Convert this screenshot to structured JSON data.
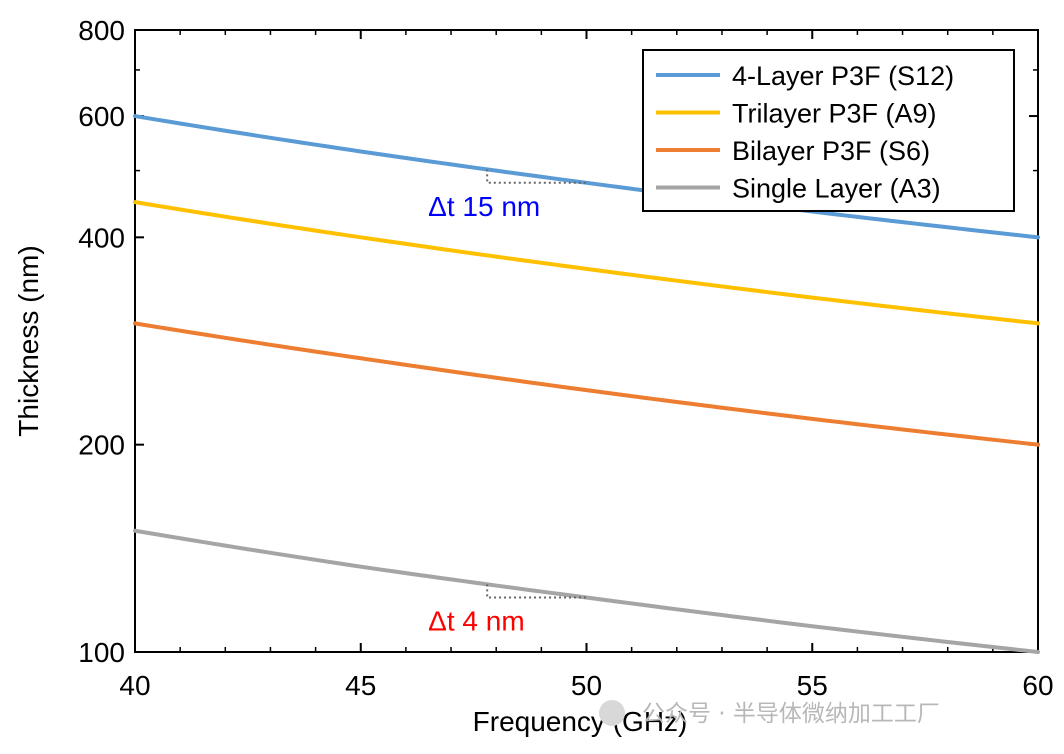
{
  "chart_data": {
    "type": "line",
    "title": "",
    "xlabel": "Frequency (GHz)",
    "ylabel": "Thickness (nm)",
    "x_scale": "linear",
    "y_scale": "log",
    "xlim": [
      40,
      60
    ],
    "ylim": [
      100,
      800
    ],
    "xticks": [
      40,
      45,
      50,
      55,
      60
    ],
    "yticks": [
      100,
      200,
      400,
      600,
      800
    ],
    "x": [
      40,
      45,
      50,
      55,
      60
    ],
    "series": [
      {
        "name": "4-Layer P3F (S12)",
        "color": "#5b9bd5",
        "values": [
          600,
          533,
          480,
          436,
          400
        ]
      },
      {
        "name": "Trilayer P3F (A9)",
        "color": "#ffc000",
        "values": [
          450,
          400,
          360,
          327,
          300
        ]
      },
      {
        "name": "Bilayer  P3F (S6)",
        "color": "#ed7d31",
        "values": [
          300,
          267,
          240,
          218,
          200
        ]
      },
      {
        "name": "Single Layer (A3)",
        "color": "#a5a5a5",
        "values": [
          150,
          133,
          120,
          109,
          100
        ]
      }
    ],
    "legend_position": "top-right",
    "annotations": [
      {
        "text": "Δt 15 nm",
        "color": "#0000ff",
        "series": "4-Layer P3F (S12)",
        "x_from": 47.8,
        "x_to": 50
      },
      {
        "text": "Δt 4 nm",
        "color": "#ff0000",
        "series": "Single Layer (A3)",
        "x_from": 47.8,
        "x_to": 50
      }
    ]
  },
  "watermark": {
    "text": "公众号 · 半导体微纳加工工厂"
  }
}
